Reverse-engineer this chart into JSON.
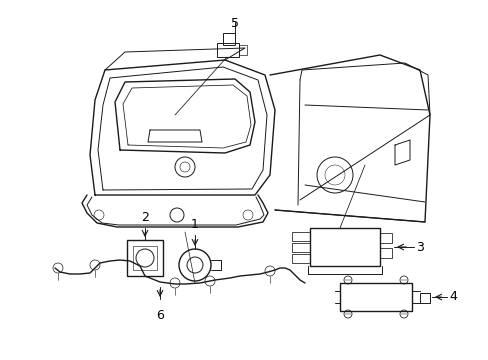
{
  "background_color": "#ffffff",
  "line_color": "#1a1a1a",
  "label_color": "#000000",
  "fig_width": 4.89,
  "fig_height": 3.6,
  "dpi": 100,
  "label_fontsize": 9
}
